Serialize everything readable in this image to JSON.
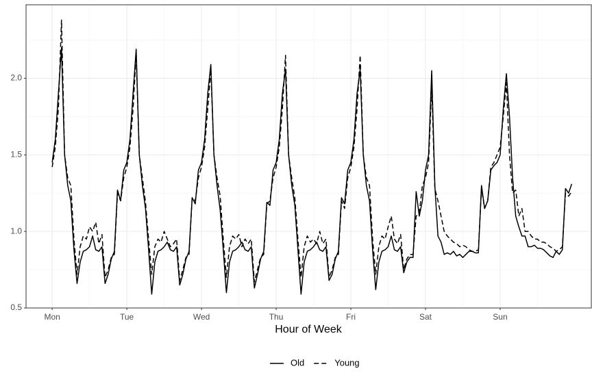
{
  "chart_data": {
    "type": "line",
    "x_label": "Hour of Week",
    "x": [
      0,
      1,
      2,
      3,
      4,
      5,
      6,
      7,
      8,
      9,
      10,
      11,
      12,
      13,
      14,
      15,
      16,
      17,
      18,
      19,
      20,
      21,
      22,
      23,
      24,
      25,
      26,
      27,
      28,
      29,
      30,
      31,
      32,
      33,
      34,
      35,
      36,
      37,
      38,
      39,
      40,
      41,
      42,
      43,
      44,
      45,
      46,
      47,
      48,
      49,
      50,
      51,
      52,
      53,
      54,
      55,
      56,
      57,
      58,
      59,
      60,
      61,
      62,
      63,
      64,
      65,
      66,
      67,
      68,
      69,
      70,
      71,
      72,
      73,
      74,
      75,
      76,
      77,
      78,
      79,
      80,
      81,
      82,
      83,
      84,
      85,
      86,
      87,
      88,
      89,
      90,
      91,
      92,
      93,
      94,
      95,
      96,
      97,
      98,
      99,
      100,
      101,
      102,
      103,
      104,
      105,
      106,
      107,
      108,
      109,
      110,
      111,
      112,
      113,
      114,
      115,
      116,
      117,
      118,
      119,
      120,
      121,
      122,
      123,
      124,
      125,
      126,
      127,
      128,
      129,
      130,
      131,
      132,
      133,
      134,
      135,
      136,
      137,
      138,
      139,
      140,
      141,
      142,
      143,
      144,
      145,
      146,
      147,
      148,
      149,
      150,
      151,
      152,
      153,
      154,
      155,
      156,
      157,
      158,
      159,
      160,
      161,
      162,
      163,
      164,
      165,
      166,
      167
    ],
    "series": [
      {
        "name": "Old",
        "color": "#000000",
        "dash": "solid",
        "values": [
          1.45,
          1.6,
          1.9,
          2.2,
          1.5,
          1.3,
          1.2,
          0.88,
          0.66,
          0.8,
          0.87,
          0.88,
          0.9,
          0.97,
          0.88,
          0.87,
          0.9,
          0.66,
          0.72,
          0.82,
          0.87,
          1.27,
          1.2,
          1.4,
          1.45,
          1.6,
          1.9,
          2.19,
          1.5,
          1.3,
          1.15,
          0.88,
          0.59,
          0.8,
          0.87,
          0.88,
          0.9,
          0.93,
          0.88,
          0.87,
          0.9,
          0.65,
          0.72,
          0.82,
          0.87,
          1.22,
          1.18,
          1.4,
          1.45,
          1.6,
          1.9,
          2.09,
          1.5,
          1.3,
          1.14,
          0.88,
          0.6,
          0.8,
          0.87,
          0.88,
          0.9,
          0.93,
          0.88,
          0.87,
          0.9,
          0.63,
          0.72,
          0.82,
          0.87,
          1.19,
          1.17,
          1.4,
          1.45,
          1.6,
          1.9,
          2.06,
          1.5,
          1.3,
          1.17,
          0.88,
          0.59,
          0.8,
          0.87,
          0.88,
          0.9,
          0.93,
          0.88,
          0.87,
          0.9,
          0.68,
          0.72,
          0.82,
          0.87,
          1.22,
          1.18,
          1.4,
          1.45,
          1.6,
          1.9,
          2.06,
          1.5,
          1.3,
          1.2,
          0.88,
          0.62,
          0.8,
          0.87,
          0.88,
          0.9,
          0.97,
          0.88,
          0.87,
          0.9,
          0.73,
          0.8,
          0.83,
          0.83,
          1.26,
          1.1,
          1.2,
          1.4,
          1.5,
          2.05,
          1.3,
          0.97,
          0.93,
          0.85,
          0.86,
          0.85,
          0.87,
          0.84,
          0.85,
          0.83,
          0.85,
          0.87,
          0.87,
          0.86,
          0.86,
          1.3,
          1.15,
          1.2,
          1.4,
          1.43,
          1.45,
          1.5,
          1.8,
          2.03,
          1.75,
          1.35,
          1.1,
          1.03,
          0.97,
          0.97,
          0.9,
          0.9,
          0.91,
          0.89,
          0.89,
          0.88,
          0.86,
          0.84,
          0.83,
          0.87,
          0.85,
          0.88,
          1.28,
          1.25,
          1.31
        ]
      },
      {
        "name": "Young",
        "color": "#000000",
        "dash": "dashed",
        "values": [
          1.42,
          1.55,
          1.8,
          2.38,
          1.5,
          1.35,
          1.3,
          0.95,
          0.72,
          0.9,
          0.97,
          0.95,
          1.03,
          1.0,
          1.06,
          0.92,
          0.98,
          0.7,
          0.75,
          0.83,
          0.85,
          1.25,
          1.2,
          1.35,
          1.42,
          1.55,
          1.8,
          2.16,
          1.5,
          1.35,
          1.19,
          0.95,
          0.72,
          0.9,
          0.95,
          0.93,
          1.0,
          0.95,
          0.9,
          0.92,
          0.95,
          0.68,
          0.75,
          0.83,
          0.85,
          1.22,
          1.2,
          1.35,
          1.42,
          1.55,
          1.8,
          2.06,
          1.5,
          1.35,
          1.23,
          0.95,
          0.7,
          0.9,
          0.97,
          0.95,
          0.98,
          0.9,
          0.95,
          0.92,
          0.95,
          0.67,
          0.75,
          0.83,
          0.85,
          1.18,
          1.2,
          1.35,
          1.42,
          1.55,
          1.8,
          2.15,
          1.5,
          1.35,
          1.22,
          0.95,
          0.7,
          0.9,
          0.97,
          0.93,
          0.95,
          0.92,
          1.0,
          0.92,
          0.95,
          0.7,
          0.75,
          0.83,
          0.85,
          1.2,
          1.15,
          1.35,
          1.42,
          1.55,
          1.8,
          2.15,
          1.5,
          1.35,
          1.3,
          0.95,
          0.72,
          0.9,
          0.97,
          0.95,
          1.03,
          1.1,
          0.95,
          0.92,
          0.98,
          0.75,
          0.82,
          0.85,
          0.85,
          1.1,
          1.12,
          1.3,
          1.35,
          1.45,
          1.95,
          1.28,
          1.2,
          1.1,
          1.0,
          0.97,
          0.95,
          0.93,
          0.92,
          0.9,
          0.91,
          0.9,
          0.88,
          0.87,
          0.87,
          0.88,
          1.28,
          1.15,
          1.2,
          1.42,
          1.45,
          1.5,
          1.55,
          1.75,
          1.97,
          1.5,
          1.25,
          1.27,
          1.1,
          1.15,
          1.0,
          1.0,
          0.97,
          0.95,
          0.95,
          0.93,
          0.93,
          0.92,
          0.9,
          0.89,
          0.87,
          0.88,
          0.9,
          1.25,
          1.23,
          1.26
        ]
      }
    ],
    "xlim": [
      -8.4,
      173.3
    ],
    "xticks": [
      {
        "value": 0,
        "label": "Mon"
      },
      {
        "value": 24,
        "label": "Tue"
      },
      {
        "value": 48,
        "label": "Wed"
      },
      {
        "value": 72,
        "label": "Thu"
      },
      {
        "value": 96,
        "label": "Fri"
      },
      {
        "value": 120,
        "label": "Sat"
      },
      {
        "value": 144,
        "label": "Sun"
      }
    ],
    "ylim": [
      0.5,
      2.48
    ],
    "yticks": [
      {
        "value": 0.5,
        "label": "0.5"
      },
      {
        "value": 1,
        "label": "1.0"
      },
      {
        "value": 1.5,
        "label": "1.5"
      },
      {
        "value": 2,
        "label": "2.0"
      }
    ],
    "grid": true,
    "minor_grid": true,
    "legend": "bottom"
  }
}
